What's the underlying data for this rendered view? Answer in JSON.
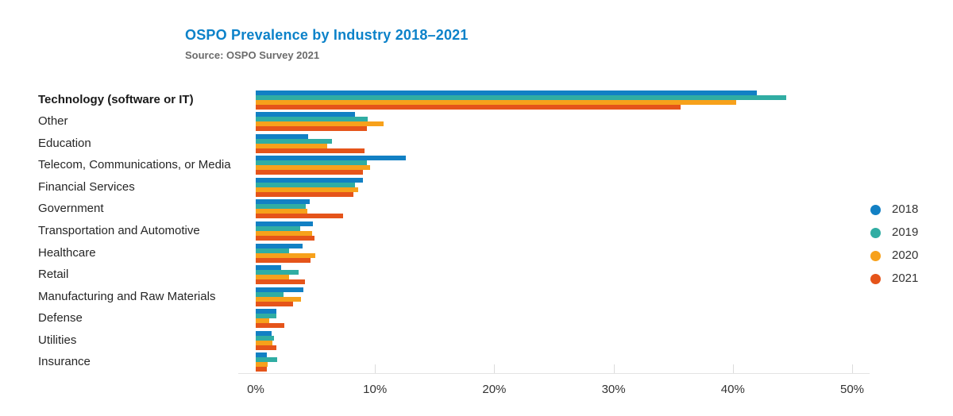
{
  "header": {
    "title": "OSPO Prevalence by Industry 2018–2021",
    "subtitle": "Source: OSPO Survey 2021"
  },
  "chart_data": {
    "type": "bar",
    "orientation": "horizontal",
    "title": "OSPO Prevalence by Industry 2018–2021",
    "subtitle": "Source: OSPO Survey 2021",
    "categories": [
      "Technology (software or IT)",
      "Other",
      "Education",
      "Telecom, Communications, or Media",
      "Financial Services",
      "Government",
      "Transportation and Automotive",
      "Healthcare",
      "Retail",
      "Manufacturing and Raw Materials",
      "Defense",
      "Utilities",
      "Insurance"
    ],
    "emphasized_category_index": 0,
    "series": [
      {
        "name": "2018",
        "color": "#1280c4",
        "values": [
          42.0,
          8.3,
          4.4,
          12.6,
          9.0,
          4.5,
          4.8,
          3.9,
          2.1,
          4.0,
          1.7,
          1.3,
          0.9
        ]
      },
      {
        "name": "2019",
        "color": "#30ada3",
        "values": [
          44.5,
          9.4,
          6.4,
          9.3,
          8.3,
          4.2,
          3.7,
          2.8,
          3.6,
          2.3,
          1.7,
          1.5,
          1.8
        ]
      },
      {
        "name": "2020",
        "color": "#f7a11b",
        "values": [
          40.3,
          10.7,
          6.0,
          9.6,
          8.6,
          4.3,
          4.7,
          5.0,
          2.8,
          3.8,
          1.1,
          1.4,
          1.0
        ]
      },
      {
        "name": "2021",
        "color": "#e5541a",
        "values": [
          35.6,
          9.3,
          9.1,
          9.0,
          8.2,
          7.3,
          4.9,
          4.6,
          4.1,
          3.1,
          2.4,
          1.7,
          0.9
        ]
      }
    ],
    "xlim": [
      0,
      50
    ],
    "tick_values": [
      0,
      10,
      20,
      30,
      40,
      50
    ],
    "tick_labels": [
      "0%",
      "10%",
      "20%",
      "30%",
      "40%",
      "50%"
    ],
    "ylabel": "",
    "xlabel": "",
    "grid": "ticks-only",
    "legend_position": "right"
  }
}
